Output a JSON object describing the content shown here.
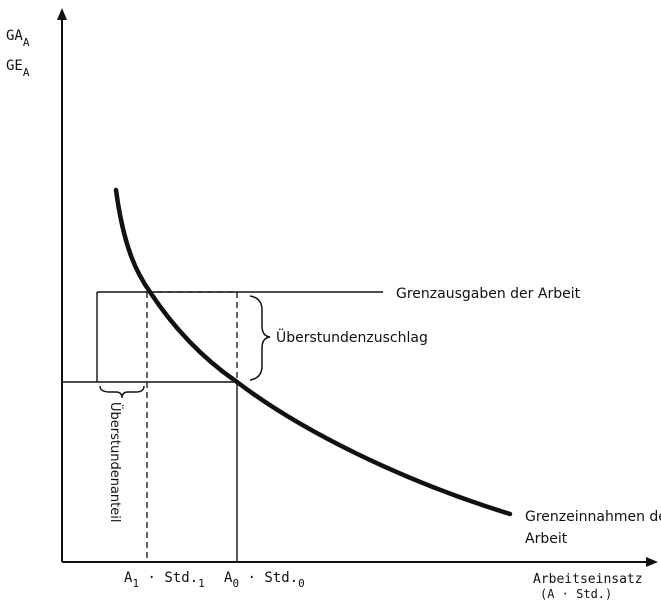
{
  "axes": {
    "y_label_line1_base": "GA",
    "y_label_line1_sub": "A",
    "y_label_line2_base": "GE",
    "y_label_line2_sub": "A",
    "x_label_line1": "Arbeitseinsatz",
    "x_label_line2": "(A · Std.)"
  },
  "ticks": {
    "a1_base": "A",
    "a1_sub": "1",
    "a1_mid": " · Std.",
    "a1_end_sub": "1",
    "a0_base": "A",
    "a0_sub": "0",
    "a0_mid": " · Std.",
    "a0_end_sub": "0"
  },
  "labels": {
    "grenzausgaben": "Grenzausgaben der Arbeit",
    "grenzeinnahmen_line1": "Grenzeinnahmen der",
    "grenzeinnahmen_line2": "Arbeit",
    "ueberstundenzuschlag": "Überstundenzuschlag",
    "ueberstundenanteil": "Überstundenanteil"
  },
  "colors": {
    "ink": "#111111",
    "background": "#ffffff"
  }
}
